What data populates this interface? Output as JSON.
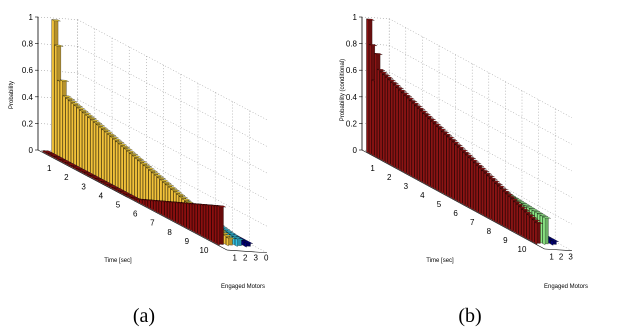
{
  "chart_data": [
    {
      "type": "bar",
      "panel_caption": "(a)",
      "zlabel": "Probability",
      "xlabel": "Time [sec]",
      "ylabel": "Engaged Motors",
      "time_ticks": [
        "1",
        "2",
        "3",
        "4",
        "5",
        "6",
        "7",
        "8",
        "9",
        "10"
      ],
      "motor_ticks": [
        "1",
        "2",
        "3",
        "0"
      ],
      "prob_ticks": [
        "0",
        "0.2",
        "0.4",
        "0.6",
        "0.8",
        "1"
      ],
      "zlim": [
        0,
        1
      ],
      "time_range": [
        0,
        10.5
      ],
      "series": [
        {
          "motors": "0",
          "color": "#00007a",
          "start_value": 0.03,
          "end_value": 0.03,
          "peak": null
        },
        {
          "motors": "1",
          "color": "#33c3e6",
          "start_value": 0.3,
          "end_value": 0.05,
          "peak": null
        },
        {
          "motors": "2",
          "color": "#f2c23a",
          "start_value": 0.5,
          "end_value": 0.05,
          "peak": 1.0
        },
        {
          "motors": "3",
          "color": "#8b0f0f",
          "start_value": 0.0,
          "end_value": 0.0,
          "ramp_start_time": 5.3,
          "ramp_end_time": 10.5,
          "ramp_end_value": 0.3
        }
      ]
    },
    {
      "type": "bar",
      "panel_caption": "(b)",
      "zlabel": "Probability (conditional)",
      "xlabel": "Time [sec]",
      "ylabel": "Engaged Motors",
      "time_ticks": [
        "1",
        "2",
        "3",
        "4",
        "5",
        "6",
        "7",
        "8",
        "9",
        "10"
      ],
      "motor_ticks": [
        "1",
        "2",
        "3"
      ],
      "prob_ticks": [
        "0",
        "0.2",
        "0.4",
        "0.6",
        "0.8",
        "1"
      ],
      "zlim": [
        0,
        1
      ],
      "time_range": [
        0,
        10.5
      ],
      "series": [
        {
          "motors": "1",
          "color": "#00007a",
          "start_value": 0.03,
          "end_value": 0.03,
          "peak": null
        },
        {
          "motors": "2",
          "color": "#8eea86",
          "start_value": 0.3,
          "end_value": 0.2,
          "peak": null
        },
        {
          "motors": "3",
          "color": "#8b1414",
          "start_value": 0.7,
          "end_value": 0.15,
          "peak": 1.0
        }
      ]
    }
  ]
}
